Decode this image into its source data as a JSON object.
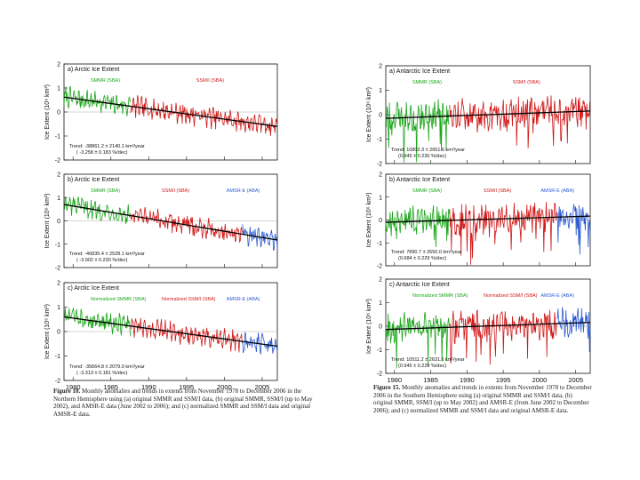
{
  "chart_data": [
    {
      "type": "line",
      "title": "a) Arctic Ice Extent",
      "hemisphere": "north",
      "ylabel": "Ice Extent (10⁶ km²)",
      "ylim": [
        -2,
        2
      ],
      "yticks": [
        -2,
        -1,
        0,
        1,
        2
      ],
      "xlim": [
        1978.8,
        2007
      ],
      "xticks": [
        1980,
        1985,
        1990,
        1995,
        2000,
        2005
      ],
      "series": [
        {
          "name": "SMMR (SBA)",
          "color": "#1aa51a",
          "x_range": [
            1978.8,
            1987.6
          ]
        },
        {
          "name": "SSM/I (SBA)",
          "color": "#d01818",
          "x_range": [
            1987.6,
            2007
          ]
        }
      ],
      "trend": {
        "start": 0.62,
        "end": -0.6,
        "text1": "Trend: -38861.2 ± 2140.1  km²/year",
        "text2": "( -3.258 ± 0.183 %/dec)"
      },
      "show_xticklabels": false
    },
    {
      "type": "line",
      "title": "b) Arctic Ice Extent",
      "hemisphere": "north",
      "ylabel": "Ice Extent (10⁶ km²)",
      "ylim": [
        -2,
        2
      ],
      "yticks": [
        -2,
        -1,
        0,
        1,
        2
      ],
      "xlim": [
        1978.8,
        2007
      ],
      "xticks": [
        1980,
        1985,
        1990,
        1995,
        2000,
        2005
      ],
      "series": [
        {
          "name": "SMMR (SBA)",
          "color": "#1aa51a",
          "x_range": [
            1978.8,
            1987.6
          ]
        },
        {
          "name": "SSM/I (SBA)",
          "color": "#d01818",
          "x_range": [
            1987.6,
            2002.4
          ]
        },
        {
          "name": "AMSR-E (ABA)",
          "color": "#2a58d0",
          "x_range": [
            2002.4,
            2007
          ]
        }
      ],
      "trend": {
        "start": 0.7,
        "end": -0.82,
        "text1": "Trend: -46835.4 ± 2528.1  km²/year",
        "text2": "( -3.902 ± 0.230  %/dec)"
      },
      "show_xticklabels": false
    },
    {
      "type": "line",
      "title": "c) Arctic Ice Extent",
      "hemisphere": "north",
      "ylabel": "Ice Extent (10⁶ km²)",
      "ylim": [
        -2,
        2
      ],
      "yticks": [
        -2,
        -1,
        0,
        1,
        2
      ],
      "xlim": [
        1978.8,
        2007
      ],
      "xticks": [
        1980,
        1985,
        1990,
        1995,
        2000,
        2005
      ],
      "series": [
        {
          "name": "Normalized SMMR (SBA)",
          "color": "#1aa51a",
          "x_range": [
            1978.8,
            1987.6
          ]
        },
        {
          "name": "Normalized SSM/I (SBA)",
          "color": "#d01818",
          "x_range": [
            1987.6,
            2002.4
          ]
        },
        {
          "name": "AMSR-E (ABA)",
          "color": "#2a58d0",
          "x_range": [
            2002.4,
            2007
          ]
        }
      ],
      "trend": {
        "start": 0.6,
        "end": -0.6,
        "text1": "Trend: -35664.8 ± 2079.0  km²/year",
        "text2": "( -3.313 ± 0.181 %/dec)"
      },
      "show_xticklabels": true
    },
    {
      "type": "line",
      "title": "a) Antarctic Ice Extent",
      "hemisphere": "south",
      "ylabel": "Ice Extent (10⁶ km²)",
      "ylim": [
        -2,
        2
      ],
      "yticks": [
        -2,
        -1,
        0,
        1,
        2
      ],
      "xlim": [
        1978.8,
        2007
      ],
      "xticks": [
        1980,
        1985,
        1990,
        1995,
        2000,
        2005
      ],
      "series": [
        {
          "name": "SMMR (SBA)",
          "color": "#1aa51a",
          "x_range": [
            1978.8,
            1987.6
          ]
        },
        {
          "name": "SSM/I (SBA)",
          "color": "#d01818",
          "x_range": [
            1987.6,
            2007
          ]
        }
      ],
      "trend": {
        "start": -0.15,
        "end": 0.15,
        "text1": "Trend: 10802.3 ± 2651.6  km²/year",
        "text2": "(0.945 ± 0.230  %/dec)"
      },
      "show_xticklabels": false
    },
    {
      "type": "line",
      "title": "b) Antarctic Ice Extent",
      "hemisphere": "south",
      "ylabel": "Ice Extent (10⁶ km²)",
      "ylim": [
        -2,
        2
      ],
      "yticks": [
        -2,
        -1,
        0,
        1,
        2
      ],
      "xlim": [
        1978.8,
        2007
      ],
      "xticks": [
        1980,
        1985,
        1990,
        1995,
        2000,
        2005
      ],
      "series": [
        {
          "name": "SMMR (SBA)",
          "color": "#1aa51a",
          "x_range": [
            1978.8,
            1987.6
          ]
        },
        {
          "name": "SSM/I (SBA)",
          "color": "#d01818",
          "x_range": [
            1987.6,
            2002.4
          ]
        },
        {
          "name": "AMSR-E (ABA)",
          "color": "#2a58d0",
          "x_range": [
            2002.4,
            2007
          ]
        }
      ],
      "trend": {
        "start": -0.1,
        "end": 0.17,
        "text1": "Trend: 7890.7 ± 2650.0  km²/year",
        "text2": "(0.684 ± 0.229  %/dec)"
      },
      "show_xticklabels": false
    },
    {
      "type": "line",
      "title": "c) Antarctic Ice Extent",
      "hemisphere": "south",
      "ylabel": "Ice Extent (10⁶ km²)",
      "ylim": [
        -2,
        2
      ],
      "yticks": [
        -2,
        -1,
        0,
        1,
        2
      ],
      "xlim": [
        1978.8,
        2007
      ],
      "xticks": [
        1980,
        1985,
        1990,
        1995,
        2000,
        2005
      ],
      "series": [
        {
          "name": "Normalized SMMR (SBA)",
          "color": "#1aa51a",
          "x_range": [
            1978.8,
            1987.6
          ]
        },
        {
          "name": "Normalized SSM/I (SBA)",
          "color": "#d01818",
          "x_range": [
            1987.6,
            2002.4
          ]
        },
        {
          "name": "AMSR-E (ABA)",
          "color": "#2a58d0",
          "x_range": [
            2002.4,
            2007
          ]
        }
      ],
      "trend": {
        "start": -0.14,
        "end": 0.16,
        "text1": "Trend: 10511.2 ± 2631.6  km²/year",
        "text2": "(0.945 ± 0.229  %/dec)"
      },
      "show_xticklabels": true
    }
  ],
  "captions": {
    "left": {
      "label": "Figure 10.",
      "text": "Monthly anomalies and trends in extents from November 1978 to December 2006 in the Northern Hemisphere using (a) original SMMR and SSM/I data, (b) original SMMR, SSM/I (up to May 2002), and AMSR-E data (June 2002 to 2006); and (c) normalized SMMR and SSM/I data and original AMSR-E data."
    },
    "right": {
      "label": "Figure 15.",
      "text": "Monthly anomalies and trends in extents from November 1978 to December 2006 in the Southern Hemisphere using (a) original SMMR and SSM/I data, (b) original SMMR, SSM/I (up to May 2002) and AMSR-E (from June 2002 to December 2006); and (c) normalized SMMR and SSM/I data and original AMSR-E data."
    }
  }
}
